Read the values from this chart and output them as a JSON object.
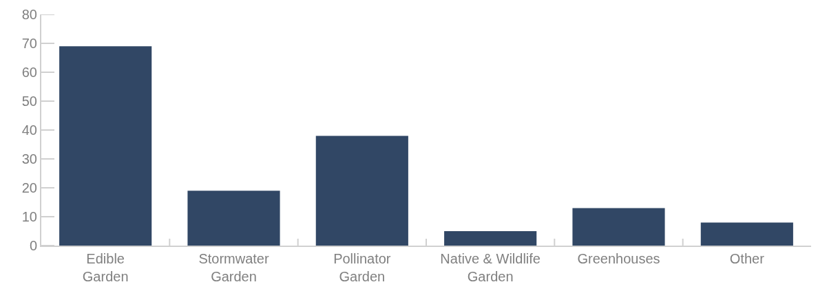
{
  "chart_data": {
    "type": "bar",
    "categories": [
      "Edible\nGarden",
      "Stormwater\nGarden",
      "Pollinator\nGarden",
      "Native & Wildlife\nGarden",
      "Greenhouses",
      "Other"
    ],
    "values": [
      69,
      19,
      38,
      5,
      13,
      8
    ],
    "color": "#314765",
    "ylim": [
      0,
      80
    ],
    "yticks": [
      0,
      10,
      20,
      30,
      40,
      50,
      60,
      70,
      80
    ]
  }
}
